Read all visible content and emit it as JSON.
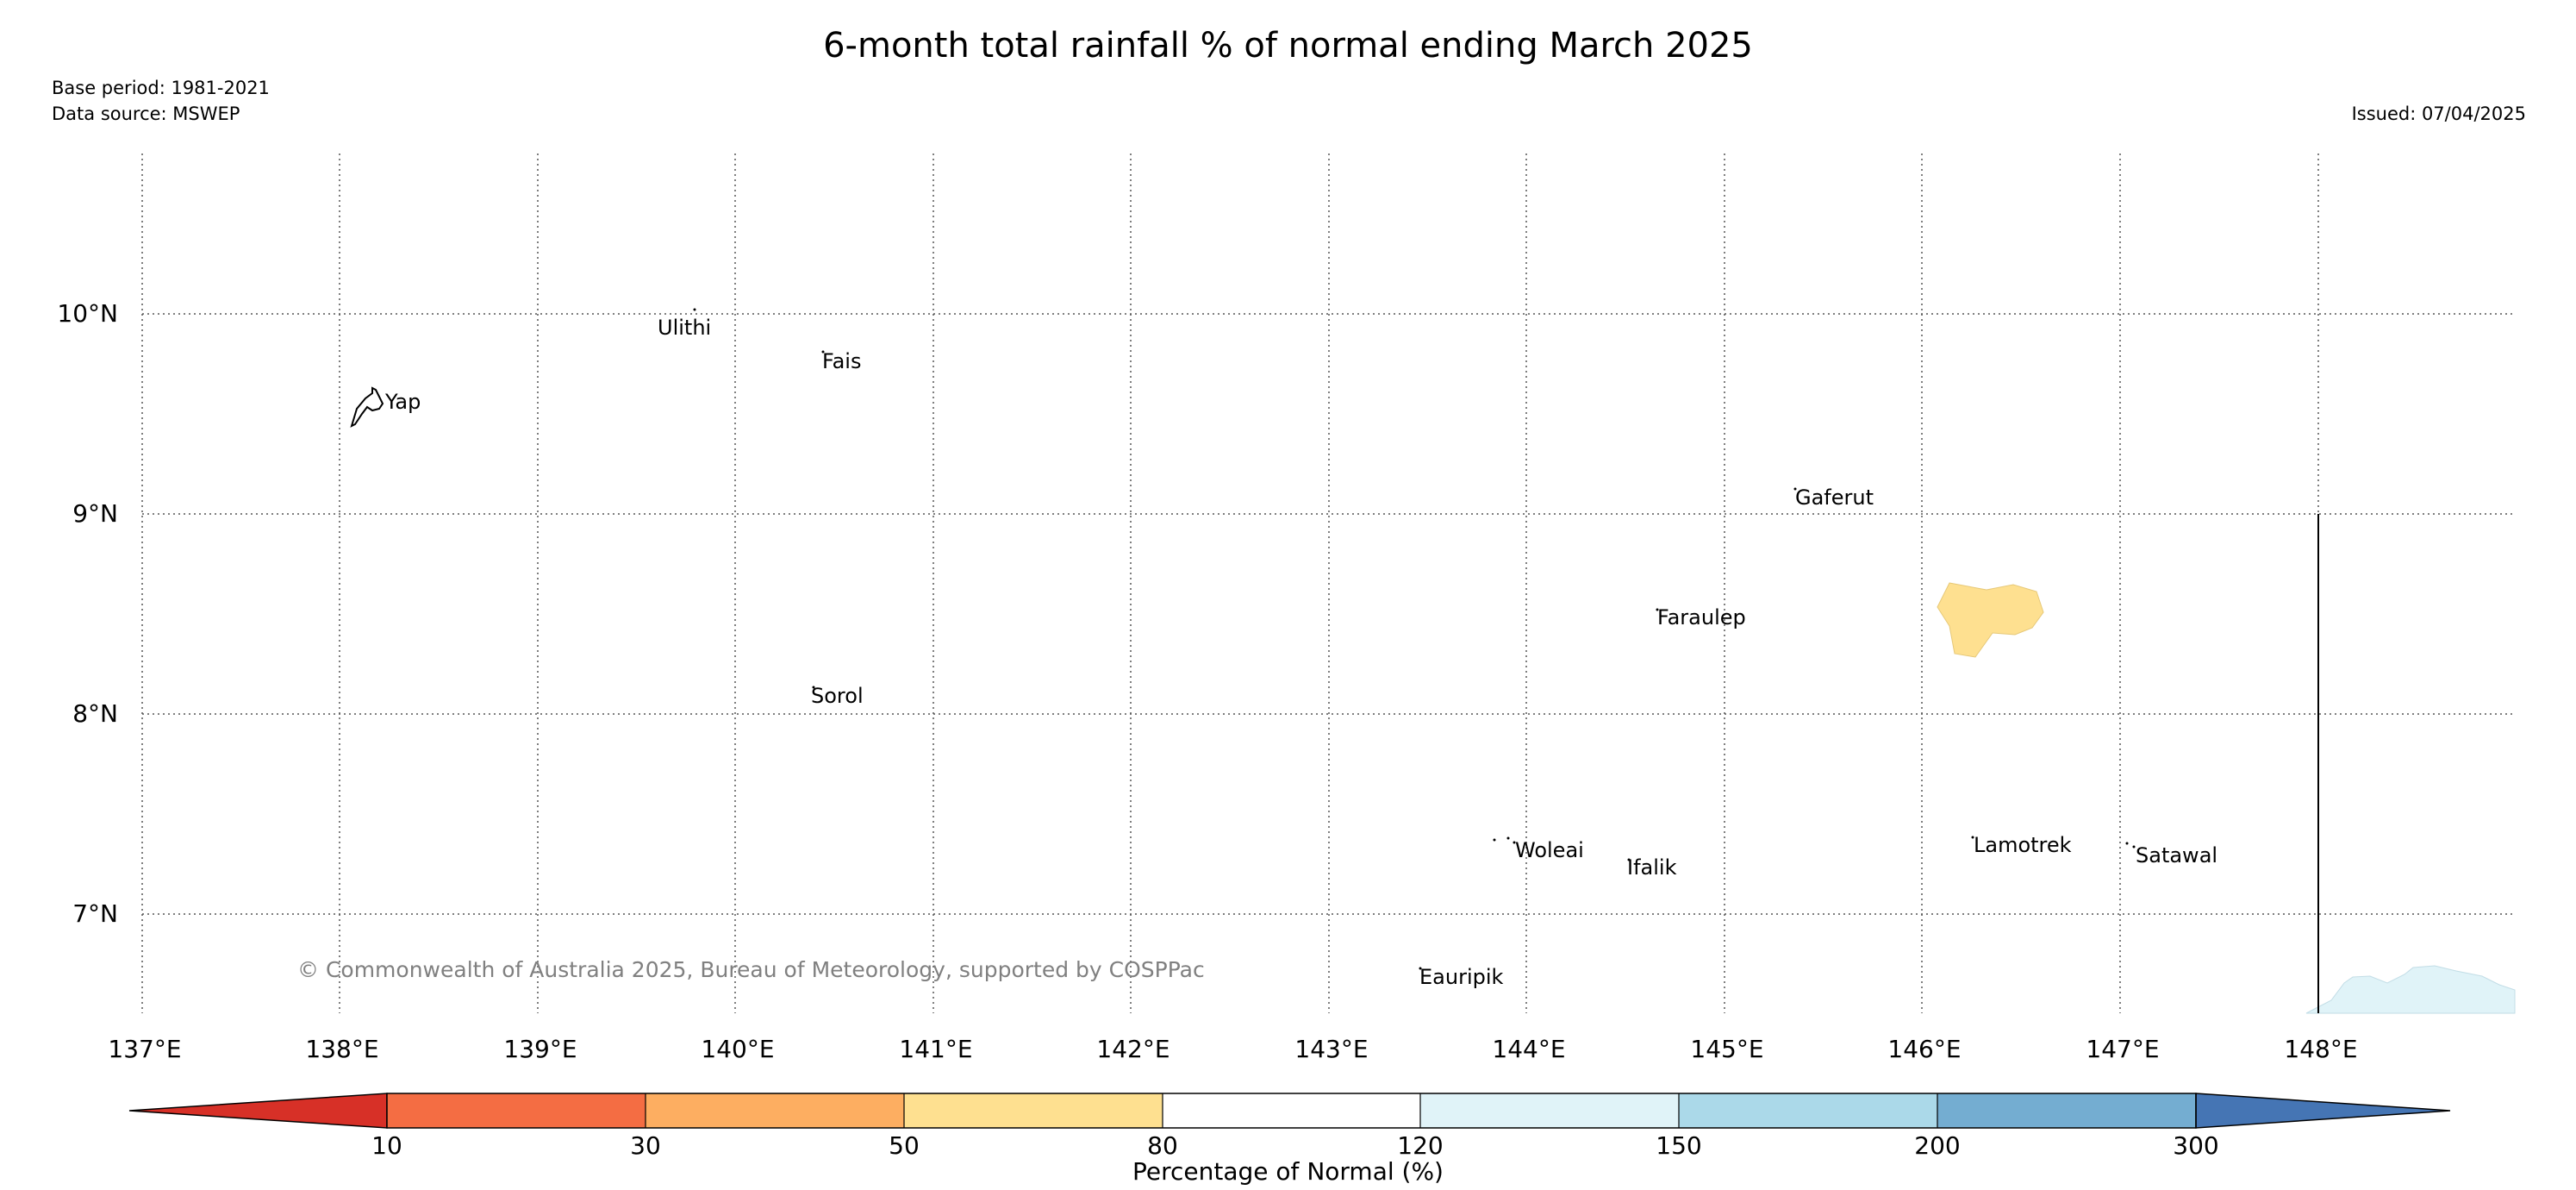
{
  "header": {
    "title": "6-month total rainfall % of normal ending March 2025",
    "base_period": "Base period: 1981-2021",
    "data_source": "Data source: MSWEP",
    "issued": "Issued: 07/04/2025"
  },
  "map": {
    "lat_labels": [
      "10°N",
      "9°N",
      "8°N",
      "7°N"
    ],
    "lon_labels": [
      "137°E",
      "138°E",
      "139°E",
      "140°E",
      "141°E",
      "142°E",
      "143°E",
      "144°E",
      "145°E",
      "146°E",
      "147°E",
      "148°E"
    ],
    "places": [
      "Ulithi",
      "Fais",
      "Yap",
      "Gaferut",
      "Faraulep",
      "Sorol",
      "Woleai",
      "Ifalik",
      "Lamotrek",
      "Satawal",
      "Eauripik"
    ],
    "copyright": "© Commonwealth of Australia 2025, Bureau of Meteorology, supported by COSPPac",
    "colors": {
      "yellow_region": "#fee090",
      "light_blue_region": "#e0f3f8",
      "grid": "#555555"
    }
  },
  "colorbar": {
    "ticks": [
      "10",
      "30",
      "50",
      "80",
      "120",
      "150",
      "200",
      "300"
    ],
    "label": "Percentage of Normal (%)",
    "colors": [
      "#d73027",
      "#f46d43",
      "#fdae61",
      "#fee090",
      "#ffffff",
      "#e0f3f8",
      "#abd9e9",
      "#74add1",
      "#4575b4"
    ]
  }
}
